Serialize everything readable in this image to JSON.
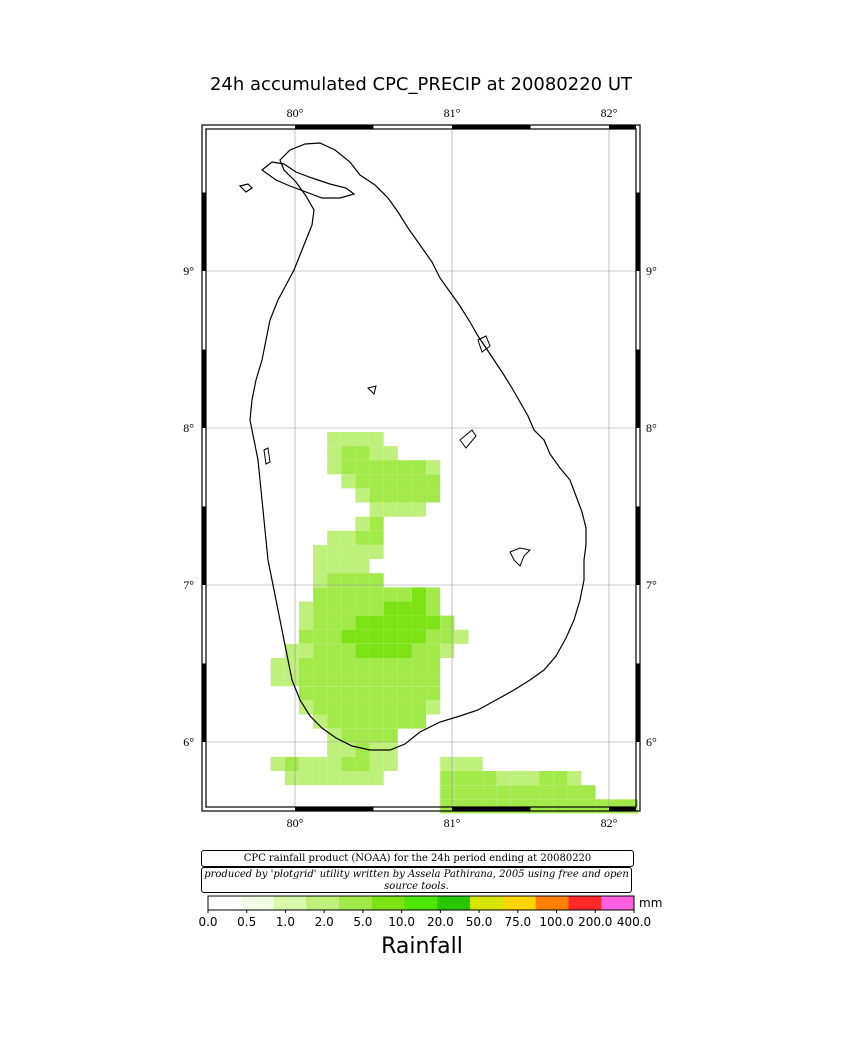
{
  "title": "24h accumulated CPC_PRECIP  at 20080220 UT",
  "axes": {
    "lon_ticks": [
      "80°",
      "81°",
      "82°"
    ],
    "lat_ticks": [
      "9°",
      "8°",
      "7°",
      "6°"
    ]
  },
  "notes": {
    "credit": "CPC rainfall product (NOAA) for the 24h period ending at 20080220",
    "author": "produced by 'plotgrid' utility written by Assela Pathirana, 2005 using free and open source tools."
  },
  "legend": {
    "title": "Rainfall",
    "unit": "mm",
    "labels": [
      "0.0",
      "0.5",
      "1.0",
      "2.0",
      "5.0",
      "10.0",
      "20.0",
      "50.0",
      "75.0",
      "100.0",
      "200.0",
      "400.0"
    ],
    "colors": [
      "#ffffff",
      "#f3fde6",
      "#d9f9ad",
      "#bff07c",
      "#a2ea4a",
      "#7ee316",
      "#4ee600",
      "#28c800",
      "#d6e600",
      "#ffd500",
      "#ff8000",
      "#ff2828",
      "#ff60e0"
    ]
  },
  "chart_data": {
    "type": "heatmap",
    "lon_range": [
      79.5,
      82.2
    ],
    "lat_range": [
      5.55,
      9.85
    ],
    "cell_size_deg": 0.09,
    "cells": [
      [
        80.25,
        7.93,
        1.2
      ],
      [
        80.34,
        7.93,
        1.8
      ],
      [
        80.43,
        7.93,
        1.8
      ],
      [
        80.52,
        7.93,
        1.2
      ],
      [
        80.25,
        7.84,
        1.5
      ],
      [
        80.34,
        7.84,
        2.5
      ],
      [
        80.43,
        7.84,
        2.5
      ],
      [
        80.52,
        7.84,
        1.8
      ],
      [
        80.61,
        7.84,
        1.0
      ],
      [
        80.25,
        7.75,
        1.2
      ],
      [
        80.34,
        7.75,
        2.5
      ],
      [
        80.43,
        7.75,
        3.0
      ],
      [
        80.52,
        7.75,
        3.0
      ],
      [
        80.61,
        7.75,
        3.5
      ],
      [
        80.7,
        7.75,
        3.5
      ],
      [
        80.79,
        7.75,
        3.5
      ],
      [
        80.88,
        7.75,
        1.8
      ],
      [
        80.34,
        7.66,
        1.8
      ],
      [
        80.43,
        7.66,
        2.5
      ],
      [
        80.52,
        7.66,
        3.5
      ],
      [
        80.61,
        7.66,
        4.0
      ],
      [
        80.7,
        7.66,
        4.0
      ],
      [
        80.79,
        7.66,
        4.0
      ],
      [
        80.88,
        7.66,
        2.5
      ],
      [
        80.43,
        7.57,
        1.5
      ],
      [
        80.52,
        7.57,
        3.5
      ],
      [
        80.61,
        7.57,
        4.0
      ],
      [
        80.7,
        7.57,
        4.0
      ],
      [
        80.79,
        7.57,
        3.5
      ],
      [
        80.88,
        7.57,
        2.0
      ],
      [
        80.52,
        7.48,
        1.5
      ],
      [
        80.61,
        7.48,
        1.8
      ],
      [
        80.7,
        7.48,
        1.5
      ],
      [
        80.79,
        7.48,
        1.2
      ],
      [
        80.43,
        7.39,
        1.0
      ],
      [
        80.52,
        7.39,
        2.5
      ],
      [
        80.25,
        7.3,
        1.0
      ],
      [
        80.34,
        7.3,
        1.5
      ],
      [
        80.43,
        7.3,
        2.0
      ],
      [
        80.52,
        7.3,
        3.0
      ],
      [
        80.16,
        7.21,
        1.0
      ],
      [
        80.25,
        7.21,
        1.5
      ],
      [
        80.34,
        7.21,
        1.8
      ],
      [
        80.43,
        7.21,
        1.8
      ],
      [
        80.52,
        7.21,
        1.8
      ],
      [
        80.16,
        7.12,
        1.2
      ],
      [
        80.25,
        7.12,
        1.8
      ],
      [
        80.34,
        7.12,
        1.8
      ],
      [
        80.43,
        7.12,
        1.5
      ],
      [
        80.16,
        7.03,
        1.8
      ],
      [
        80.25,
        7.03,
        2.5
      ],
      [
        80.34,
        7.03,
        2.0
      ],
      [
        80.43,
        7.03,
        2.5
      ],
      [
        80.52,
        7.03,
        2.5
      ],
      [
        80.16,
        6.94,
        2.0
      ],
      [
        80.25,
        6.94,
        3.0
      ],
      [
        80.34,
        6.94,
        3.5
      ],
      [
        80.43,
        6.94,
        3.5
      ],
      [
        80.52,
        6.94,
        3.5
      ],
      [
        80.61,
        6.94,
        4.0
      ],
      [
        80.7,
        6.94,
        4.5
      ],
      [
        80.79,
        6.94,
        5.0
      ],
      [
        80.88,
        6.94,
        4.0
      ],
      [
        80.07,
        6.85,
        1.5
      ],
      [
        80.16,
        6.85,
        2.5
      ],
      [
        80.25,
        6.85,
        3.0
      ],
      [
        80.34,
        6.85,
        3.5
      ],
      [
        80.43,
        6.85,
        4.0
      ],
      [
        80.52,
        6.85,
        4.5
      ],
      [
        80.61,
        6.85,
        5.0
      ],
      [
        80.7,
        6.85,
        5.5
      ],
      [
        80.79,
        6.85,
        6.0
      ],
      [
        80.88,
        6.85,
        4.5
      ],
      [
        80.07,
        6.76,
        1.8
      ],
      [
        80.16,
        6.76,
        2.5
      ],
      [
        80.25,
        6.76,
        3.5
      ],
      [
        80.34,
        6.76,
        4.5
      ],
      [
        80.43,
        6.76,
        5.0
      ],
      [
        80.52,
        6.76,
        5.5
      ],
      [
        80.61,
        6.76,
        6.0
      ],
      [
        80.7,
        6.76,
        6.5
      ],
      [
        80.79,
        6.76,
        6.5
      ],
      [
        80.88,
        6.76,
        5.0
      ],
      [
        80.97,
        6.76,
        2.0
      ],
      [
        80.07,
        6.67,
        2.0
      ],
      [
        80.16,
        6.67,
        2.5
      ],
      [
        80.25,
        6.67,
        3.5
      ],
      [
        80.34,
        6.67,
        5.0
      ],
      [
        80.43,
        6.67,
        6.0
      ],
      [
        80.52,
        6.67,
        6.5
      ],
      [
        80.61,
        6.67,
        6.5
      ],
      [
        80.7,
        6.67,
        6.0
      ],
      [
        80.79,
        6.67,
        5.5
      ],
      [
        80.88,
        6.67,
        4.0
      ],
      [
        80.97,
        6.67,
        2.5
      ],
      [
        81.06,
        6.67,
        1.5
      ],
      [
        79.98,
        6.58,
        1.0
      ],
      [
        80.07,
        6.58,
        1.8
      ],
      [
        80.16,
        6.58,
        2.5
      ],
      [
        80.25,
        6.58,
        3.5
      ],
      [
        80.34,
        6.58,
        4.5
      ],
      [
        80.43,
        6.58,
        5.5
      ],
      [
        80.52,
        6.58,
        6.0
      ],
      [
        80.61,
        6.58,
        6.0
      ],
      [
        80.7,
        6.58,
        5.5
      ],
      [
        80.79,
        6.58,
        4.5
      ],
      [
        80.88,
        6.58,
        3.0
      ],
      [
        80.97,
        6.58,
        1.8
      ],
      [
        79.89,
        6.49,
        1.2
      ],
      [
        79.98,
        6.49,
        1.5
      ],
      [
        80.07,
        6.49,
        2.0
      ],
      [
        80.16,
        6.49,
        3.0
      ],
      [
        80.25,
        6.49,
        3.5
      ],
      [
        80.34,
        6.49,
        4.0
      ],
      [
        80.43,
        6.49,
        4.5
      ],
      [
        80.52,
        6.49,
        4.5
      ],
      [
        80.61,
        6.49,
        4.5
      ],
      [
        80.7,
        6.49,
        4.0
      ],
      [
        80.79,
        6.49,
        3.5
      ],
      [
        80.88,
        6.49,
        2.5
      ],
      [
        79.89,
        6.4,
        1.0
      ],
      [
        79.98,
        6.4,
        1.2
      ],
      [
        80.07,
        6.4,
        2.0
      ],
      [
        80.16,
        6.4,
        3.0
      ],
      [
        80.25,
        6.4,
        3.5
      ],
      [
        80.34,
        6.4,
        4.0
      ],
      [
        80.43,
        6.4,
        4.0
      ],
      [
        80.52,
        6.4,
        4.0
      ],
      [
        80.61,
        6.4,
        3.5
      ],
      [
        80.7,
        6.4,
        3.5
      ],
      [
        80.79,
        6.4,
        3.0
      ],
      [
        80.88,
        6.4,
        2.5
      ],
      [
        80.07,
        6.31,
        2.0
      ],
      [
        80.16,
        6.31,
        3.0
      ],
      [
        80.25,
        6.31,
        3.5
      ],
      [
        80.34,
        6.31,
        4.0
      ],
      [
        80.43,
        6.31,
        4.5
      ],
      [
        80.52,
        6.31,
        4.5
      ],
      [
        80.61,
        6.31,
        4.0
      ],
      [
        80.7,
        6.31,
        3.5
      ],
      [
        80.79,
        6.31,
        3.0
      ],
      [
        80.88,
        6.31,
        2.5
      ],
      [
        80.07,
        6.22,
        1.5
      ],
      [
        80.16,
        6.22,
        2.5
      ],
      [
        80.25,
        6.22,
        3.0
      ],
      [
        80.34,
        6.22,
        3.5
      ],
      [
        80.43,
        6.22,
        4.0
      ],
      [
        80.52,
        6.22,
        4.0
      ],
      [
        80.61,
        6.22,
        3.5
      ],
      [
        80.7,
        6.22,
        3.0
      ],
      [
        80.79,
        6.22,
        2.5
      ],
      [
        80.88,
        6.22,
        1.8
      ],
      [
        80.16,
        6.13,
        1.8
      ],
      [
        80.25,
        6.13,
        2.5
      ],
      [
        80.34,
        6.13,
        3.0
      ],
      [
        80.43,
        6.13,
        3.5
      ],
      [
        80.52,
        6.13,
        3.5
      ],
      [
        80.61,
        6.13,
        3.5
      ],
      [
        80.7,
        6.13,
        3.0
      ],
      [
        80.79,
        6.13,
        2.5
      ],
      [
        80.25,
        6.04,
        1.8
      ],
      [
        80.34,
        6.04,
        2.5
      ],
      [
        80.43,
        6.04,
        3.0
      ],
      [
        80.52,
        6.04,
        3.0
      ],
      [
        80.61,
        6.04,
        2.5
      ],
      [
        80.25,
        5.95,
        1.2
      ],
      [
        80.34,
        5.95,
        1.8
      ],
      [
        80.43,
        5.95,
        2.0
      ],
      [
        80.52,
        5.95,
        1.8
      ],
      [
        80.61,
        5.95,
        1.2
      ],
      [
        79.89,
        5.86,
        1.0
      ],
      [
        79.98,
        5.86,
        2.5
      ],
      [
        80.07,
        5.86,
        1.8
      ],
      [
        80.16,
        5.86,
        1.2
      ],
      [
        80.25,
        5.86,
        1.8
      ],
      [
        80.34,
        5.86,
        2.0
      ],
      [
        80.43,
        5.86,
        2.0
      ],
      [
        80.52,
        5.86,
        1.8
      ],
      [
        80.61,
        5.86,
        1.0
      ],
      [
        80.97,
        5.86,
        1.0
      ],
      [
        81.06,
        5.86,
        1.2
      ],
      [
        81.15,
        5.86,
        1.0
      ],
      [
        79.98,
        5.77,
        1.0
      ],
      [
        80.07,
        5.77,
        1.2
      ],
      [
        80.16,
        5.77,
        1.5
      ],
      [
        80.25,
        5.77,
        1.8
      ],
      [
        80.34,
        5.77,
        1.8
      ],
      [
        80.43,
        5.77,
        1.8
      ],
      [
        80.52,
        5.77,
        1.2
      ],
      [
        80.97,
        5.77,
        2.5
      ],
      [
        81.06,
        5.77,
        2.0
      ],
      [
        81.15,
        5.77,
        2.0
      ],
      [
        81.24,
        5.77,
        2.0
      ],
      [
        81.33,
        5.77,
        1.8
      ],
      [
        81.42,
        5.77,
        1.8
      ],
      [
        81.51,
        5.77,
        1.8
      ],
      [
        81.6,
        5.77,
        2.0
      ],
      [
        81.69,
        5.77,
        2.0
      ],
      [
        81.78,
        5.77,
        1.5
      ],
      [
        80.97,
        5.68,
        3.0
      ],
      [
        81.06,
        5.68,
        3.0
      ],
      [
        81.15,
        5.68,
        3.0
      ],
      [
        81.24,
        5.68,
        3.0
      ],
      [
        81.33,
        5.68,
        3.0
      ],
      [
        81.42,
        5.68,
        3.0
      ],
      [
        81.51,
        5.68,
        3.0
      ],
      [
        81.6,
        5.68,
        3.5
      ],
      [
        81.69,
        5.68,
        3.5
      ],
      [
        81.78,
        5.68,
        3.0
      ],
      [
        81.87,
        5.68,
        2.5
      ],
      [
        80.97,
        5.59,
        3.5
      ],
      [
        81.06,
        5.59,
        3.5
      ],
      [
        81.15,
        5.59,
        3.5
      ],
      [
        81.24,
        5.59,
        3.5
      ],
      [
        81.33,
        5.59,
        3.5
      ],
      [
        81.42,
        5.59,
        3.5
      ],
      [
        81.51,
        5.59,
        4.0
      ],
      [
        81.6,
        5.59,
        4.0
      ],
      [
        81.69,
        5.59,
        4.5
      ],
      [
        81.78,
        5.59,
        4.5
      ],
      [
        81.87,
        5.59,
        4.5
      ],
      [
        81.96,
        5.59,
        4.5
      ],
      [
        82.05,
        5.59,
        4.5
      ],
      [
        82.14,
        5.59,
        4.5
      ]
    ]
  }
}
